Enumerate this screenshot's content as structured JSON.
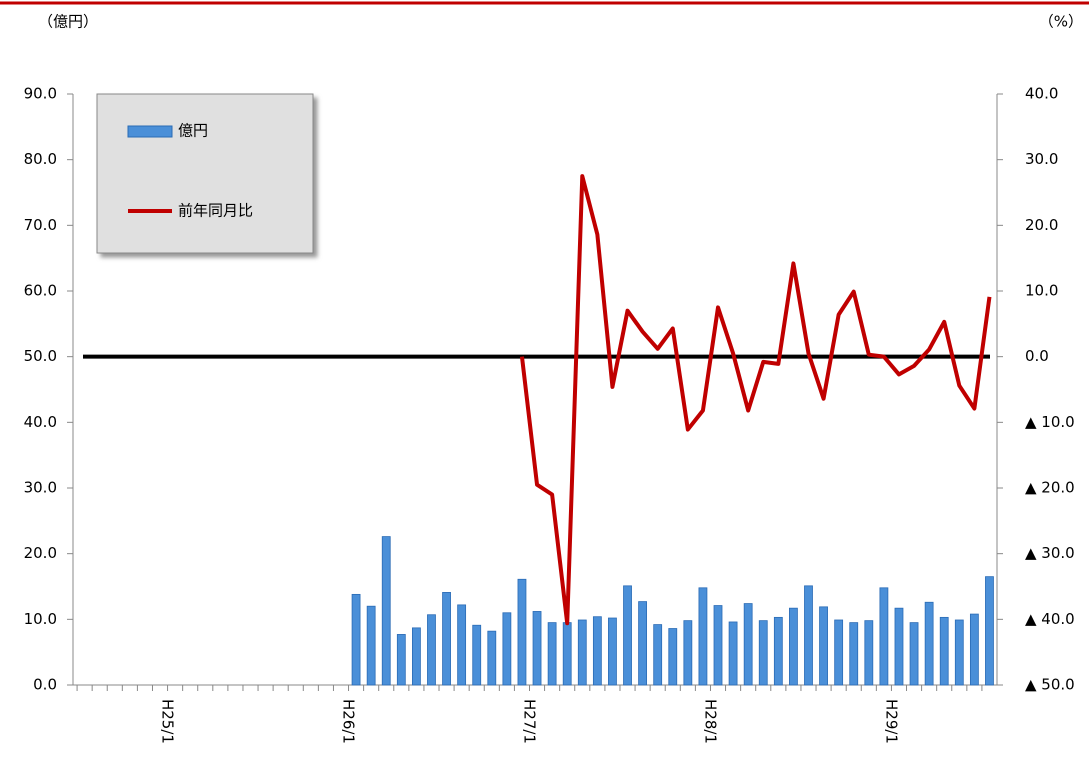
{
  "chart_data": {
    "type": "bar",
    "y_label": "（億円）",
    "y2_label": "（%）",
    "categories": [
      null,
      null,
      null,
      null,
      null,
      null,
      null,
      "H25/1",
      null,
      null,
      null,
      null,
      null,
      null,
      null,
      null,
      null,
      null,
      null,
      "H26/1",
      null,
      null,
      null,
      null,
      null,
      null,
      null,
      null,
      null,
      null,
      null,
      "H27/1",
      null,
      null,
      null,
      null,
      null,
      null,
      null,
      null,
      null,
      null,
      null,
      "H28/1",
      null,
      null,
      null,
      null,
      null,
      null,
      null,
      null,
      null,
      null,
      null,
      "H29/1",
      null,
      null,
      null,
      null,
      null,
      null
    ],
    "series": [
      {
        "name": "億円",
        "type": "bar",
        "color": "#4a8fd8",
        "values": [
          null,
          null,
          null,
          null,
          null,
          null,
          null,
          null,
          null,
          null,
          null,
          null,
          null,
          null,
          null,
          null,
          null,
          null,
          null,
          13.8,
          12.0,
          22.6,
          7.7,
          8.7,
          10.7,
          14.1,
          12.2,
          9.1,
          8.2,
          11.0,
          16.1,
          11.2,
          9.5,
          9.5,
          9.9,
          10.4,
          10.2,
          15.1,
          12.7,
          9.2,
          8.6,
          9.8,
          14.8,
          12.1,
          9.6,
          12.4,
          9.8,
          10.3,
          11.7,
          15.1,
          11.9,
          9.9,
          9.5,
          9.8,
          14.8,
          11.7,
          9.5,
          12.6,
          10.3,
          9.9,
          10.8,
          16.5
        ]
      },
      {
        "name": "前年同月比",
        "type": "line",
        "axis": "y2",
        "color": "#c00000",
        "values": [
          null,
          null,
          null,
          null,
          null,
          null,
          null,
          null,
          null,
          null,
          null,
          null,
          null,
          null,
          null,
          null,
          null,
          null,
          null,
          null,
          null,
          null,
          null,
          null,
          null,
          null,
          null,
          null,
          null,
          null,
          0,
          -19.5,
          -21,
          -40.6,
          27.5,
          18.6,
          -4.6,
          7.0,
          3.8,
          1.2,
          4.3,
          -11.1,
          -8.2,
          7.5,
          0.5,
          -8.2,
          -0.8,
          -1.1,
          14.2,
          0.5,
          -6.4,
          6.4,
          9.9,
          0.3,
          0,
          -2.7,
          -1.4,
          1.1,
          5.3,
          -4.4,
          -7.9,
          9.1
        ]
      }
    ],
    "ylim": [
      0,
      90
    ],
    "yticks": [
      {
        "value": 0,
        "label": "0.0"
      },
      {
        "value": 10,
        "label": "10.0"
      },
      {
        "value": 20,
        "label": "20.0"
      },
      {
        "value": 30,
        "label": "30.0"
      },
      {
        "value": 40,
        "label": "40.0"
      },
      {
        "value": 50,
        "label": "50.0"
      },
      {
        "value": 60,
        "label": "60.0"
      },
      {
        "value": 70,
        "label": "70.0"
      },
      {
        "value": 80,
        "label": "80.0"
      },
      {
        "value": 90,
        "label": "90.0"
      }
    ],
    "y2lim": [
      -50,
      40
    ],
    "y2ticks": [
      {
        "value": -50,
        "label": "▲ 50.0"
      },
      {
        "value": -40,
        "label": "▲ 40.0"
      },
      {
        "value": -30,
        "label": "▲ 30.0"
      },
      {
        "value": -20,
        "label": "▲ 20.0"
      },
      {
        "value": -10,
        "label": "▲ 10.0"
      },
      {
        "value": 0,
        "label": "0.0"
      },
      {
        "value": 10,
        "label": "10.0"
      },
      {
        "value": 20,
        "label": "20.0"
      },
      {
        "value": 30,
        "label": "30.0"
      },
      {
        "value": 40,
        "label": "40.0"
      }
    ],
    "legend": "upper left"
  }
}
